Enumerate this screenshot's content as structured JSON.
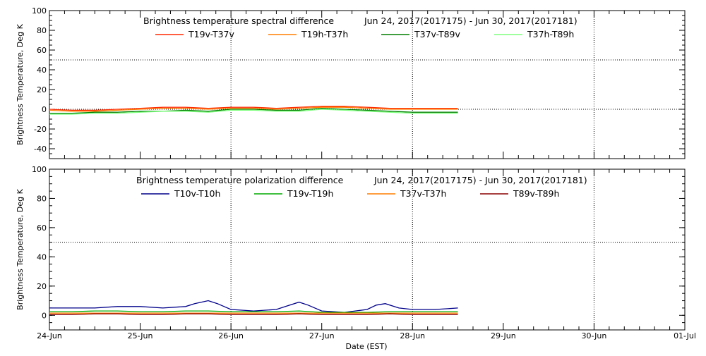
{
  "chart_data": [
    {
      "type": "line",
      "title_left": "Brightness temperature spectral difference",
      "title_right": "Jun 24, 2017(2017175) - Jun 30, 2017(2017181)",
      "ylabel": "Brightness Temperature, Deg K",
      "xlim": [
        0,
        7
      ],
      "ylim": [
        -50,
        100
      ],
      "yticks": [
        -40,
        -20,
        0,
        20,
        40,
        60,
        80,
        100
      ],
      "xgrid": [
        2,
        4,
        6
      ],
      "ygrid": [
        0,
        50
      ],
      "series": [
        {
          "name": "T19v-T37v",
          "color": "#ff2a00",
          "x": [
            0,
            0.25,
            0.5,
            0.75,
            1,
            1.25,
            1.5,
            1.75,
            2,
            2.25,
            2.5,
            2.75,
            3,
            3.25,
            3.5,
            3.75,
            4,
            4.25,
            4.5
          ],
          "y": [
            0,
            -1,
            -1,
            0,
            1,
            2,
            2,
            1,
            2,
            2,
            1,
            2,
            3,
            3,
            2,
            1,
            1,
            1,
            1
          ]
        },
        {
          "name": "T19h-T37h",
          "color": "#ff7f00",
          "x": [
            0,
            0.25,
            0.5,
            0.75,
            1,
            1.25,
            1.5,
            1.75,
            2,
            2.25,
            2.5,
            2.75,
            3,
            3.25,
            3.5,
            3.75,
            4,
            4.25,
            4.5
          ],
          "y": [
            -1,
            -2,
            -2,
            -1,
            0,
            1,
            1,
            0,
            1,
            1,
            0,
            1,
            2,
            2,
            1,
            0,
            0,
            0,
            0
          ]
        },
        {
          "name": "T37v-T89v",
          "color": "#007f00",
          "x": [
            0,
            0.25,
            0.5,
            0.75,
            1,
            1.25,
            1.5,
            1.75,
            2,
            2.25,
            2.5,
            2.75,
            3,
            3.25,
            3.5,
            3.75,
            4,
            4.25,
            4.5
          ],
          "y": [
            -4,
            -4,
            -3,
            -3,
            -2,
            -2,
            -1,
            -2,
            0,
            0,
            -1,
            -1,
            1,
            0,
            -1,
            -2,
            -3,
            -3,
            -3
          ]
        },
        {
          "name": "T37h-T89h",
          "color": "#7fff7f",
          "x": [
            0,
            0.25,
            0.5,
            0.75,
            1,
            1.25,
            1.5,
            1.75,
            2,
            2.25,
            2.5,
            2.75,
            3,
            3.25,
            3.5,
            3.75,
            4,
            4.25,
            4.5
          ],
          "y": [
            -5,
            -5,
            -4,
            -4,
            -3,
            -2,
            -2,
            -3,
            -1,
            -1,
            -2,
            -2,
            0,
            -1,
            -2,
            -3,
            -4,
            -4,
            -4
          ]
        }
      ]
    },
    {
      "type": "line",
      "title_left": "Brightness temperature polarization difference",
      "title_right": "Jun 24, 2017(2017175) - Jun 30, 2017(2017181)",
      "ylabel": "Brightness Temperature, Deg K",
      "xlabel": "Date (EST)",
      "xlim": [
        0,
        7
      ],
      "ylim": [
        -10,
        100
      ],
      "yticks": [
        0,
        20,
        40,
        60,
        80,
        100
      ],
      "xtick_labels": [
        "24-Jun",
        "25-Jun",
        "26-Jun",
        "27-Jun",
        "28-Jun",
        "29-Jun",
        "30-Jun",
        "01-Jul"
      ],
      "xgrid": [
        2,
        4,
        6
      ],
      "ygrid": [
        50
      ],
      "series": [
        {
          "name": "T10v-T10h",
          "color": "#00008b",
          "x": [
            0,
            0.25,
            0.5,
            0.75,
            1,
            1.25,
            1.5,
            1.6,
            1.75,
            1.85,
            2,
            2.25,
            2.5,
            2.6,
            2.75,
            2.85,
            3,
            3.25,
            3.5,
            3.6,
            3.7,
            3.85,
            4,
            4.25,
            4.5
          ],
          "y": [
            5,
            5,
            5,
            6,
            6,
            5,
            6,
            8,
            10,
            8,
            4,
            3,
            4,
            6,
            9,
            7,
            3,
            2,
            4,
            7,
            8,
            5,
            4,
            4,
            5
          ]
        },
        {
          "name": "T19v-T19h",
          "color": "#00aa00",
          "x": [
            0,
            0.25,
            0.5,
            0.75,
            1,
            1.25,
            1.5,
            1.75,
            2,
            2.25,
            2.5,
            2.75,
            3,
            3.25,
            3.5,
            3.75,
            4,
            4.25,
            4.5
          ],
          "y": [
            2.5,
            2.5,
            3,
            3,
            2.5,
            2.5,
            3,
            3,
            2.5,
            2.5,
            2.5,
            3,
            2,
            2,
            2,
            2.5,
            2.5,
            2.5,
            2.5
          ]
        },
        {
          "name": "T37v-T37h",
          "color": "#ff7f00",
          "x": [
            0,
            0.25,
            0.5,
            0.75,
            1,
            1.25,
            1.5,
            1.75,
            2,
            2.25,
            2.5,
            2.75,
            3,
            3.25,
            3.5,
            3.75,
            4,
            4.25,
            4.5
          ],
          "y": [
            1.5,
            1.5,
            1.5,
            1.5,
            1.5,
            1.5,
            1.5,
            1.5,
            1.5,
            1.5,
            1.5,
            1.5,
            1.5,
            1.5,
            1.5,
            1.5,
            1.5,
            1.5,
            1.5
          ]
        },
        {
          "name": "T89v-T89h",
          "color": "#8b0000",
          "x": [
            0,
            0.25,
            0.5,
            0.75,
            1,
            1.25,
            1.5,
            1.75,
            2,
            2.25,
            2.5,
            2.75,
            3,
            3.25,
            3.5,
            3.75,
            4,
            4.25,
            4.5
          ],
          "y": [
            0.5,
            0.5,
            1,
            1,
            0.5,
            0.5,
            1,
            1,
            0.5,
            0.5,
            0.5,
            1,
            0.5,
            0.5,
            0.5,
            1,
            0.5,
            0.5,
            0.5
          ]
        }
      ]
    }
  ]
}
